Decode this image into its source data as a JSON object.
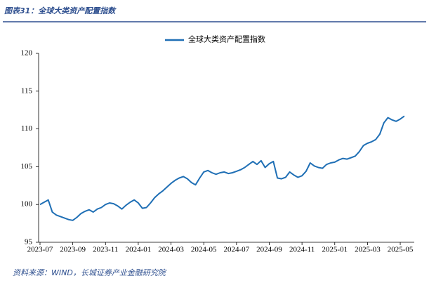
{
  "chart_data": {
    "type": "line",
    "title": "图表31：全球大类资产配置指数",
    "source": "资料来源：WIND，长城证券产业金融研究院",
    "categories": [
      "2023-07",
      null,
      null,
      null,
      null,
      null,
      null,
      null,
      "2023-09",
      null,
      null,
      null,
      null,
      null,
      null,
      null,
      "2023-11",
      null,
      null,
      null,
      null,
      null,
      null,
      null,
      "2024-01",
      null,
      null,
      null,
      null,
      null,
      null,
      null,
      "2024-03",
      null,
      null,
      null,
      null,
      null,
      null,
      null,
      "2024-05",
      null,
      null,
      null,
      null,
      null,
      null,
      null,
      "2024-07",
      null,
      null,
      null,
      null,
      null,
      null,
      null,
      "2024-09",
      null,
      null,
      null,
      null,
      null,
      null,
      null,
      "2024-11",
      null,
      null,
      null,
      null,
      null,
      null,
      null,
      "2025-01",
      null,
      null,
      null,
      null,
      null,
      null,
      null,
      "2025-03",
      null,
      null,
      null,
      null,
      null,
      null,
      null,
      "2025-05",
      null
    ],
    "series": [
      {
        "name": "全球大类资产配置指数",
        "color": "#1f6fb5",
        "values": [
          100,
          100.3,
          100.6,
          99.0,
          98.6,
          98.4,
          98.2,
          98.0,
          97.9,
          98.3,
          98.8,
          99.1,
          99.3,
          99.0,
          99.4,
          99.6,
          100.0,
          100.2,
          100.1,
          99.8,
          99.4,
          99.9,
          100.3,
          100.6,
          100.2,
          99.5,
          99.6,
          100.2,
          100.9,
          101.4,
          101.8,
          102.3,
          102.8,
          103.2,
          103.5,
          103.7,
          103.4,
          102.9,
          102.6,
          103.5,
          104.3,
          104.5,
          104.2,
          104.0,
          104.2,
          104.3,
          104.1,
          104.2,
          104.4,
          104.6,
          104.9,
          105.3,
          105.7,
          105.3,
          105.8,
          104.9,
          105.4,
          105.7,
          103.5,
          103.4,
          103.6,
          104.3,
          103.9,
          103.6,
          103.8,
          104.4,
          105.5,
          105.1,
          104.9,
          104.8,
          105.3,
          105.5,
          105.6,
          105.9,
          106.1,
          106.0,
          106.2,
          106.4,
          107.0,
          107.8,
          108.1,
          108.3,
          108.6,
          109.3,
          110.8,
          111.5,
          111.2,
          111.0,
          111.3,
          111.7
        ]
      }
    ],
    "ylim": [
      95,
      120
    ],
    "yticks": [
      95,
      100,
      105,
      110,
      115,
      120
    ],
    "legend": "top"
  }
}
